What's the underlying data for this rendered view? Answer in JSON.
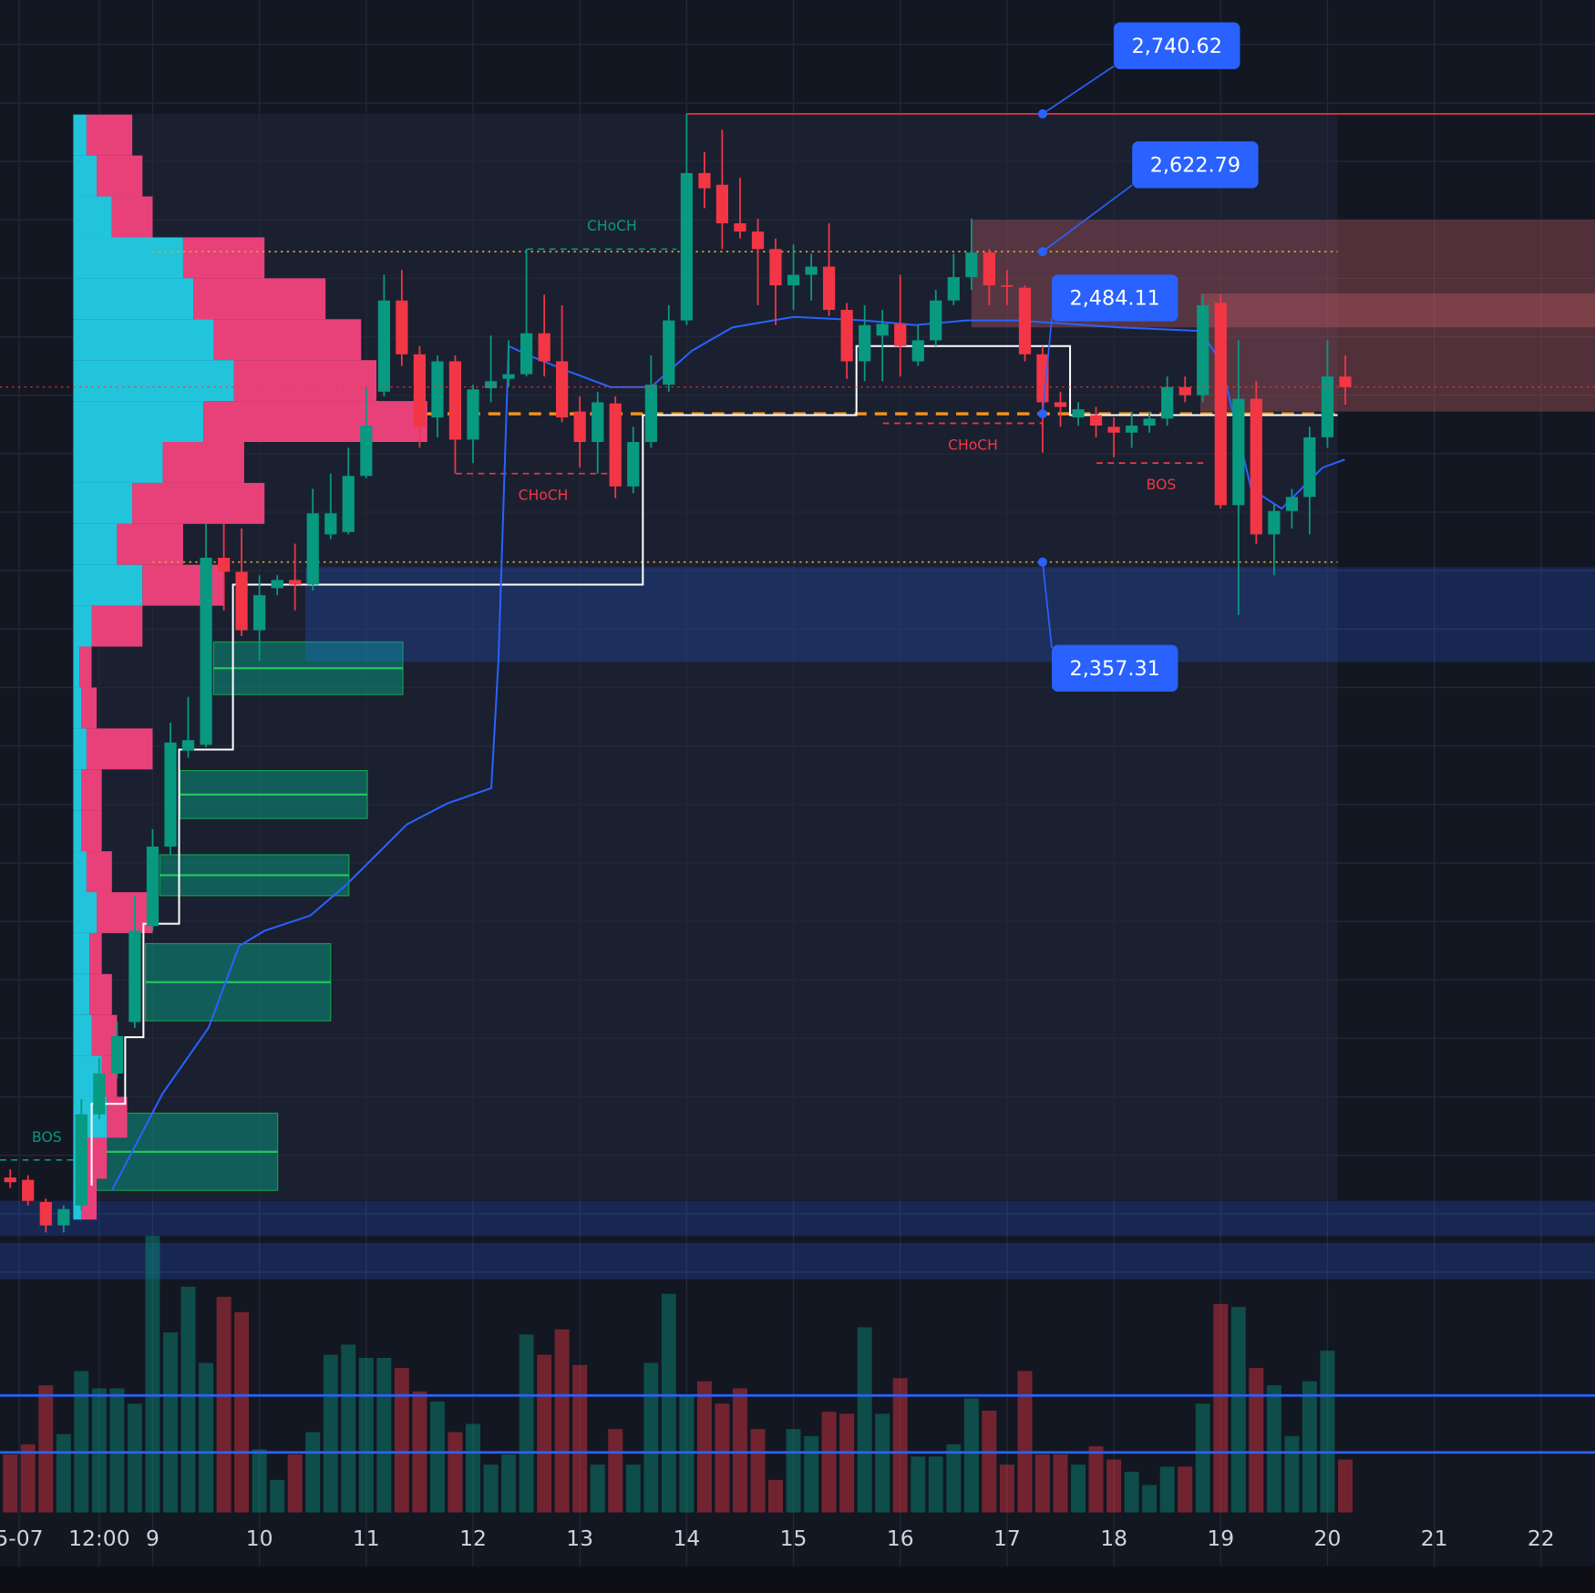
{
  "chart_data": {
    "type": "candlestick",
    "x": [
      7.667,
      7.833,
      8,
      8.167,
      8.333,
      8.5,
      8.667,
      8.833,
      9,
      9.167,
      9.333,
      9.5,
      9.667,
      9.833,
      10,
      10.167,
      10.333,
      10.5,
      10.667,
      10.833,
      11,
      11.167,
      11.333,
      11.5,
      11.667,
      11.833,
      12,
      12.167,
      12.333,
      12.5,
      12.667,
      12.833,
      13,
      13.167,
      13.333,
      13.5,
      13.667,
      13.833,
      14,
      14.167,
      14.333,
      14.5,
      14.667,
      14.833,
      15,
      15.167,
      15.333,
      15.5,
      15.667,
      15.833,
      16,
      16.167,
      16.333,
      16.5,
      16.667,
      16.833,
      17,
      17.167,
      17.333,
      17.5,
      17.667,
      17.833,
      18,
      18.167,
      18.333,
      18.5,
      18.667,
      18.833,
      19,
      19.167,
      19.333,
      19.5,
      19.667,
      19.833,
      20,
      20.167
    ],
    "open": [
      1831,
      1829,
      1810,
      1790,
      1807,
      1885,
      1920,
      1964,
      2046,
      2114,
      2196,
      2201,
      2361,
      2349,
      2299,
      2335,
      2342,
      2338,
      2381,
      2383,
      2431,
      2503,
      2581,
      2535,
      2481,
      2529,
      2462,
      2506,
      2514,
      2518,
      2553,
      2529,
      2486,
      2460,
      2493,
      2422,
      2460,
      2509,
      2564,
      2690,
      2680,
      2647,
      2640,
      2625,
      2594,
      2603,
      2610,
      2573,
      2529,
      2551,
      2561,
      2529,
      2547,
      2581,
      2601,
      2622,
      2594,
      2592,
      2535,
      2494,
      2481,
      2483,
      2473,
      2468,
      2474,
      2480,
      2507,
      2500,
      2579,
      2406,
      2497,
      2381,
      2401,
      2413,
      2464,
      2516
    ],
    "high": [
      1838,
      1833,
      1813,
      1807,
      1898,
      1933,
      1964,
      2072,
      2129,
      2220,
      2242,
      2390,
      2390,
      2386,
      2346,
      2346,
      2373,
      2420,
      2433,
      2455,
      2507,
      2603,
      2607,
      2542,
      2534,
      2534,
      2509,
      2551,
      2547,
      2625,
      2586,
      2577,
      2499,
      2503,
      2499,
      2473,
      2534,
      2577,
      2741,
      2708,
      2727,
      2686,
      2651,
      2634,
      2629,
      2621,
      2647,
      2579,
      2577,
      2573,
      2603,
      2560,
      2590,
      2621,
      2651,
      2625,
      2607,
      2594,
      2542,
      2503,
      2494,
      2490,
      2481,
      2486,
      2486,
      2516,
      2516,
      2586,
      2586,
      2547,
      2512,
      2407,
      2420,
      2473,
      2547,
      2534
    ],
    "low": [
      1822,
      1807,
      1784,
      1784,
      1803,
      1881,
      1916,
      1959,
      2042,
      2107,
      2190,
      2199,
      2316,
      2294,
      2273,
      2329,
      2316,
      2333,
      2377,
      2381,
      2429,
      2499,
      2525,
      2455,
      2464,
      2433,
      2442,
      2494,
      2507,
      2516,
      2516,
      2477,
      2438,
      2433,
      2412,
      2416,
      2455,
      2503,
      2560,
      2660,
      2625,
      2634,
      2577,
      2560,
      2573,
      2581,
      2568,
      2514,
      2512,
      2512,
      2516,
      2525,
      2542,
      2577,
      2590,
      2577,
      2577,
      2529,
      2451,
      2473,
      2474,
      2464,
      2447,
      2455,
      2468,
      2474,
      2494,
      2494,
      2403,
      2312,
      2373,
      2346,
      2386,
      2381,
      2455,
      2492
    ],
    "close": [
      1827,
      1811,
      1790,
      1804,
      1885,
      1920,
      1952,
      2042,
      2114,
      2203,
      2205,
      2361,
      2349,
      2299,
      2329,
      2342,
      2338,
      2399,
      2399,
      2431,
      2474,
      2581,
      2535,
      2473,
      2529,
      2462,
      2505,
      2512,
      2518,
      2553,
      2529,
      2481,
      2460,
      2494,
      2422,
      2460,
      2509,
      2564,
      2690,
      2677,
      2647,
      2640,
      2625,
      2594,
      2603,
      2610,
      2573,
      2529,
      2560,
      2561,
      2542,
      2547,
      2581,
      2601,
      2622,
      2594,
      2593,
      2535,
      2494,
      2490,
      2488,
      2474,
      2468,
      2474,
      2480,
      2507,
      2500,
      2577,
      2406,
      2497,
      2381,
      2401,
      2413,
      2464,
      2516,
      2507
    ],
    "up_color": "#089981",
    "down_color": "#f23645",
    "xlim": [
      7.571,
      22.505
    ],
    "xticks": [
      {
        "value": 7.75,
        "label": "5-07"
      },
      {
        "value": 8.5,
        "label": "12:00"
      },
      9,
      10,
      11,
      12,
      13,
      14,
      15,
      16,
      17,
      18,
      19,
      20,
      21,
      22
    ],
    "ylim": [
      1742,
      2838
    ],
    "yticks": [
      1750,
      1800,
      1850,
      1900,
      1950,
      2000,
      2050,
      2100,
      2150,
      2200,
      2250,
      2300,
      2350,
      2400,
      2450,
      2500,
      2550,
      2600,
      2650,
      2700,
      2750,
      2800
    ],
    "show_ytick_labels": false,
    "grid": true,
    "volume": [
      57,
      67,
      125,
      77,
      139,
      122,
      122,
      107,
      272,
      177,
      222,
      147,
      212,
      197,
      62,
      32,
      57,
      79,
      155,
      165,
      152,
      152,
      142,
      119,
      109,
      79,
      87,
      47,
      57,
      175,
      155,
      180,
      145,
      47,
      82,
      47,
      147,
      215,
      115,
      129,
      107,
      122,
      82,
      32,
      82,
      75,
      99,
      97,
      182,
      97,
      132,
      55,
      55,
      67,
      112,
      100,
      47,
      139,
      57,
      57,
      47,
      65,
      52,
      40,
      27,
      45,
      45,
      107,
      205,
      202,
      142,
      125,
      75,
      129,
      159,
      52
    ],
    "volume_ylim": [
      0,
      300
    ],
    "volume_levels": [
      115,
      59
    ],
    "ma": {
      "color": "#2962ff",
      "x": [
        8.619,
        9.095,
        9.524,
        9.81,
        10.048,
        10.476,
        10.81,
        11.381,
        11.762,
        12.171,
        12.238,
        12.333,
        12.524,
        12.905,
        13.286,
        13.667,
        14.048,
        14.429,
        15,
        15.667,
        16.143,
        16.619,
        17.095,
        18.048,
        18.81,
        19,
        19.286,
        19.571,
        19.952,
        20.162
      ],
      "values": [
        1820,
        1903,
        1959,
        2029,
        2042,
        2055,
        2081,
        2133,
        2151,
        2164,
        2273,
        2542,
        2534,
        2520,
        2507,
        2507,
        2538,
        2558,
        2567,
        2564,
        2560,
        2564,
        2564,
        2558,
        2555,
        2529,
        2420,
        2403,
        2438,
        2445
      ]
    },
    "trail": {
      "color": "#ffffff",
      "x": [
        8.429,
        8.429,
        8.743,
        8.743,
        8.914,
        8.914,
        9.248,
        9.248,
        9.752,
        9.752,
        13.59,
        13.59,
        15.59,
        15.59,
        17.59,
        17.59,
        20.095
      ],
      "values": [
        1824,
        1894,
        1894,
        1951,
        1951,
        2048,
        2048,
        2197,
        2197,
        2338,
        2338,
        2483,
        2483,
        2542,
        2542,
        2483,
        2483
      ]
    },
    "levels": [
      {
        "value": 2740.62,
        "label": "2,740.62",
        "style": "solid",
        "color": "#f23645",
        "x1": 14.0,
        "x2": 22.505
      },
      {
        "value": 2622.79,
        "label": "2,622.79",
        "style": "dotted",
        "color": "#d4a72c",
        "x1": 9,
        "x2": 20.095
      },
      {
        "value": 2484.11,
        "label": "2,484.11",
        "style": "dashed",
        "color": "#f7931a",
        "x1": 11.571,
        "x2": 20.095
      },
      {
        "value": 2357.31,
        "label": "2,357.31",
        "style": "dotted",
        "color": "#d4a72c",
        "x1": 9,
        "x2": 20.095
      }
    ],
    "level_marker_x": 17.333,
    "level_label_color": "#2962ff",
    "structure": [
      {
        "label": "CHoCH",
        "direction": "bullish",
        "value": 2625,
        "x1": 12.505,
        "x2": 13.905
      },
      {
        "label": "CHoCH",
        "direction": "bearish",
        "value": 2433,
        "x1": 11.838,
        "x2": 13.286
      },
      {
        "label": "CHoCH",
        "direction": "bearish",
        "value": 2476,
        "x1": 15.838,
        "x2": 17.333
      },
      {
        "label": "BOS",
        "direction": "bearish",
        "value": 2442,
        "x1": 17.838,
        "x2": 18.857
      },
      {
        "label": "BOS",
        "direction": "bullish",
        "value": 1846,
        "x1": 7.571,
        "x2": 8.257
      }
    ],
    "zones": [
      {
        "kind": "demand",
        "x1": 9.571,
        "x2": 11.343,
        "y1": 2244,
        "y2": 2289
      },
      {
        "kind": "demand",
        "x1": 9.257,
        "x2": 11.01,
        "y1": 2138,
        "y2": 2179
      },
      {
        "kind": "demand",
        "x1": 9.067,
        "x2": 10.838,
        "y1": 2072,
        "y2": 2107
      },
      {
        "kind": "demand",
        "x1": 8.933,
        "x2": 10.667,
        "y1": 1965,
        "y2": 2031
      },
      {
        "kind": "demand",
        "x1": 8.429,
        "x2": 10.171,
        "y1": 1820,
        "y2": 1886
      },
      {
        "kind": "support",
        "x1": 10.429,
        "x2": 22.505,
        "y1": 2272,
        "y2": 2353
      },
      {
        "kind": "support",
        "x1": 7.571,
        "x2": 22.505,
        "y1": 1781,
        "y2": 1811
      },
      {
        "kind": "support",
        "x1": 7.571,
        "x2": 22.505,
        "y1": 1744,
        "y2": 1775
      },
      {
        "kind": "resistance",
        "x1": 16.667,
        "x2": 22.505,
        "y1": 2558,
        "y2": 2650
      },
      {
        "kind": "resistance",
        "x1": 18.81,
        "x2": 22.505,
        "y1": 2486,
        "y2": 2587
      }
    ],
    "profile": {
      "x": 8.257,
      "up_color": "#22c4dc",
      "down_color": "#e8417a",
      "bins": [
        2740,
        2705,
        2670,
        2635,
        2600,
        2565,
        2530,
        2495,
        2460,
        2425,
        2390,
        2355,
        2320,
        2285,
        2250,
        2215,
        2180,
        2145,
        2110,
        2075,
        2040,
        2005,
        1970,
        1935,
        1900,
        1865,
        1830,
        1795
      ],
      "up": [
        13,
        23,
        38,
        108,
        118,
        138,
        158,
        128,
        88,
        58,
        43,
        68,
        18,
        6,
        8,
        13,
        8,
        8,
        13,
        23,
        16,
        16,
        18,
        28,
        33,
        13,
        8
      ],
      "down": [
        45,
        45,
        40,
        80,
        130,
        145,
        140,
        220,
        80,
        130,
        65,
        80,
        50,
        12,
        15,
        65,
        20,
        20,
        25,
        55,
        12,
        22,
        25,
        15,
        20,
        20,
        15
      ]
    }
  }
}
